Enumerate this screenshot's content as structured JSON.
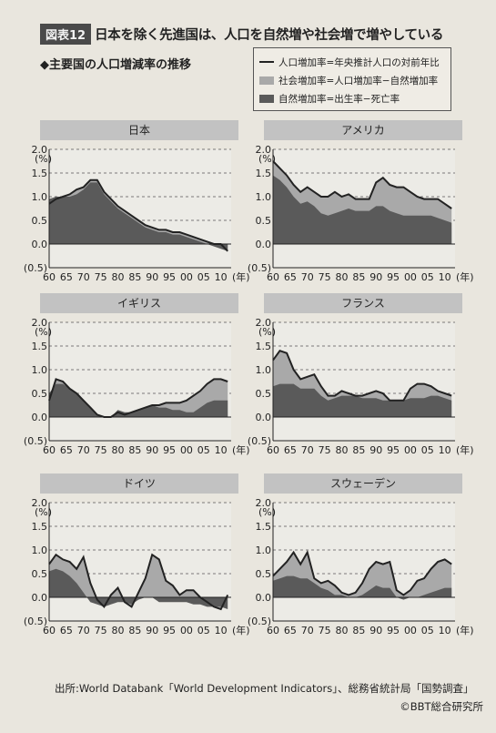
{
  "header": {
    "badge": "図表12",
    "title": "日本を除く先進国は、人口を自然増や社会増で増やしている"
  },
  "subtitle": "◆主要国の人口増減率の推移",
  "legend": [
    {
      "label": "人口増加率=年央推計人口の対前年比",
      "style": "line"
    },
    {
      "label": "社会増加率=人口増加率−自然増加率",
      "style": "light"
    },
    {
      "label": "自然増加率=出生率−死亡率",
      "style": "dark"
    }
  ],
  "colors": {
    "line": "#222222",
    "light_fill": "#a9a9a9",
    "dark_fill": "#5a5a5a",
    "title_bar": "#c2c2c2",
    "plot_bg": "#ecebe6"
  },
  "axis_common": {
    "yticks": [
      {
        "value": 2.0,
        "label": "2.0"
      },
      {
        "value": 1.5,
        "label": "1.5"
      },
      {
        "value": 1.0,
        "label": "1.0"
      },
      {
        "value": 0.5,
        "label": "0.5"
      },
      {
        "value": 0.0,
        "label": "0.0"
      },
      {
        "value": -0.5,
        "label": "(0.5)"
      }
    ],
    "yunit": "(%)",
    "xticks": [
      1960,
      1965,
      1970,
      1975,
      1980,
      1985,
      1990,
      1995,
      2000,
      2005,
      2010
    ],
    "xtick_labels": [
      "60",
      "65",
      "70",
      "75",
      "80",
      "85",
      "90",
      "95",
      "00",
      "05",
      "10"
    ],
    "xunit": "(年)"
  },
  "chart_data": [
    {
      "type": "area",
      "title": "日本",
      "ylim": [
        -0.5,
        2.0
      ],
      "xlim": [
        1960,
        2013
      ],
      "grid": "dashed",
      "x": [
        1960,
        1962,
        1964,
        1966,
        1968,
        1970,
        1972,
        1974,
        1976,
        1978,
        1980,
        1982,
        1984,
        1986,
        1988,
        1990,
        1992,
        1994,
        1996,
        1998,
        2000,
        2002,
        2004,
        2006,
        2008,
        2010,
        2012
      ],
      "series": [
        {
          "name": "人口増加率",
          "values": [
            0.85,
            0.95,
            1.0,
            1.05,
            1.15,
            1.2,
            1.35,
            1.35,
            1.1,
            0.95,
            0.8,
            0.7,
            0.6,
            0.5,
            0.4,
            0.35,
            0.3,
            0.3,
            0.25,
            0.25,
            0.2,
            0.15,
            0.1,
            0.05,
            0.0,
            0.0,
            -0.15
          ]
        },
        {
          "name": "自然増加率",
          "values": [
            0.95,
            1.0,
            1.0,
            1.0,
            1.05,
            1.15,
            1.3,
            1.3,
            1.05,
            0.9,
            0.75,
            0.65,
            0.55,
            0.45,
            0.35,
            0.3,
            0.25,
            0.25,
            0.2,
            0.2,
            0.15,
            0.1,
            0.05,
            0.0,
            -0.05,
            -0.1,
            -0.15
          ]
        }
      ]
    },
    {
      "type": "area",
      "title": "アメリカ",
      "ylim": [
        -0.5,
        2.0
      ],
      "xlim": [
        1960,
        2013
      ],
      "grid": "dashed",
      "x": [
        1960,
        1962,
        1964,
        1966,
        1968,
        1970,
        1972,
        1974,
        1976,
        1978,
        1980,
        1982,
        1984,
        1986,
        1988,
        1990,
        1992,
        1994,
        1996,
        1998,
        2000,
        2002,
        2004,
        2006,
        2008,
        2010,
        2012
      ],
      "series": [
        {
          "name": "人口増加率",
          "values": [
            1.75,
            1.6,
            1.45,
            1.25,
            1.1,
            1.2,
            1.1,
            1.0,
            1.0,
            1.1,
            1.0,
            1.05,
            0.95,
            0.95,
            0.95,
            1.3,
            1.4,
            1.25,
            1.2,
            1.2,
            1.1,
            1.0,
            0.95,
            0.95,
            0.95,
            0.85,
            0.75
          ]
        },
        {
          "name": "自然増加率",
          "values": [
            1.45,
            1.35,
            1.2,
            1.0,
            0.85,
            0.9,
            0.8,
            0.65,
            0.6,
            0.65,
            0.7,
            0.75,
            0.7,
            0.7,
            0.7,
            0.8,
            0.8,
            0.7,
            0.65,
            0.6,
            0.6,
            0.6,
            0.6,
            0.6,
            0.55,
            0.5,
            0.45
          ]
        }
      ]
    },
    {
      "type": "area",
      "title": "イギリス",
      "ylim": [
        -0.5,
        2.0
      ],
      "xlim": [
        1960,
        2013
      ],
      "grid": "dashed",
      "x": [
        1960,
        1962,
        1964,
        1966,
        1968,
        1970,
        1972,
        1974,
        1976,
        1978,
        1980,
        1982,
        1984,
        1986,
        1988,
        1990,
        1992,
        1994,
        1996,
        1998,
        2000,
        2002,
        2004,
        2006,
        2008,
        2010,
        2012
      ],
      "series": [
        {
          "name": "人口増加率",
          "values": [
            0.35,
            0.8,
            0.75,
            0.6,
            0.5,
            0.35,
            0.2,
            0.05,
            0.0,
            0.0,
            0.1,
            0.05,
            0.1,
            0.15,
            0.2,
            0.25,
            0.25,
            0.3,
            0.3,
            0.3,
            0.35,
            0.45,
            0.55,
            0.7,
            0.8,
            0.8,
            0.75
          ]
        },
        {
          "name": "自然増加率",
          "values": [
            0.5,
            0.7,
            0.7,
            0.6,
            0.5,
            0.35,
            0.2,
            0.05,
            0.0,
            0.0,
            0.15,
            0.1,
            0.1,
            0.15,
            0.2,
            0.25,
            0.2,
            0.2,
            0.15,
            0.15,
            0.1,
            0.1,
            0.2,
            0.3,
            0.35,
            0.35,
            0.35
          ]
        }
      ]
    },
    {
      "type": "area",
      "title": "フランス",
      "ylim": [
        -0.5,
        2.0
      ],
      "xlim": [
        1960,
        2013
      ],
      "grid": "dashed",
      "x": [
        1960,
        1962,
        1964,
        1966,
        1968,
        1970,
        1972,
        1974,
        1976,
        1978,
        1980,
        1982,
        1984,
        1986,
        1988,
        1990,
        1992,
        1994,
        1996,
        1998,
        2000,
        2002,
        2004,
        2006,
        2008,
        2010,
        2012
      ],
      "series": [
        {
          "name": "人口増加率",
          "values": [
            1.2,
            1.4,
            1.35,
            1.0,
            0.8,
            0.85,
            0.9,
            0.65,
            0.45,
            0.45,
            0.55,
            0.5,
            0.45,
            0.45,
            0.5,
            0.55,
            0.5,
            0.35,
            0.35,
            0.35,
            0.6,
            0.7,
            0.7,
            0.65,
            0.55,
            0.5,
            0.45
          ]
        },
        {
          "name": "自然増加率",
          "values": [
            0.65,
            0.7,
            0.7,
            0.7,
            0.6,
            0.6,
            0.6,
            0.45,
            0.35,
            0.4,
            0.45,
            0.45,
            0.45,
            0.4,
            0.4,
            0.4,
            0.35,
            0.35,
            0.35,
            0.35,
            0.4,
            0.4,
            0.4,
            0.45,
            0.45,
            0.4,
            0.35
          ]
        }
      ]
    },
    {
      "type": "area",
      "title": "ドイツ",
      "ylim": [
        -0.5,
        2.0
      ],
      "xlim": [
        1960,
        2013
      ],
      "grid": "dashed",
      "x": [
        1960,
        1962,
        1964,
        1966,
        1968,
        1970,
        1972,
        1974,
        1976,
        1978,
        1980,
        1982,
        1984,
        1986,
        1988,
        1990,
        1992,
        1994,
        1996,
        1998,
        2000,
        2002,
        2004,
        2006,
        2008,
        2010,
        2012
      ],
      "series": [
        {
          "name": "人口増加率",
          "values": [
            0.7,
            0.9,
            0.8,
            0.75,
            0.6,
            0.85,
            0.3,
            -0.05,
            -0.2,
            0.05,
            0.2,
            -0.1,
            -0.2,
            0.1,
            0.4,
            0.9,
            0.8,
            0.35,
            0.25,
            0.05,
            0.15,
            0.15,
            0.0,
            -0.1,
            -0.2,
            -0.25,
            0.05
          ]
        },
        {
          "name": "自然増加率",
          "values": [
            0.55,
            0.6,
            0.55,
            0.45,
            0.3,
            0.1,
            -0.1,
            -0.15,
            -0.2,
            -0.15,
            -0.1,
            -0.1,
            -0.15,
            -0.05,
            0.0,
            0.0,
            -0.1,
            -0.1,
            -0.1,
            -0.1,
            -0.1,
            -0.15,
            -0.15,
            -0.2,
            -0.2,
            -0.2,
            -0.25
          ]
        }
      ]
    },
    {
      "type": "area",
      "title": "スウェーデン",
      "ylim": [
        -0.5,
        2.0
      ],
      "xlim": [
        1960,
        2013
      ],
      "grid": "dashed",
      "x": [
        1960,
        1962,
        1964,
        1966,
        1968,
        1970,
        1972,
        1974,
        1976,
        1978,
        1980,
        1982,
        1984,
        1986,
        1988,
        1990,
        1992,
        1994,
        1996,
        1998,
        2000,
        2002,
        2004,
        2006,
        2008,
        2010,
        2012
      ],
      "series": [
        {
          "name": "人口増加率",
          "values": [
            0.45,
            0.6,
            0.75,
            0.95,
            0.7,
            0.95,
            0.4,
            0.3,
            0.35,
            0.25,
            0.1,
            0.05,
            0.1,
            0.3,
            0.6,
            0.75,
            0.7,
            0.75,
            0.15,
            0.05,
            0.15,
            0.35,
            0.4,
            0.6,
            0.75,
            0.8,
            0.7
          ]
        },
        {
          "name": "自然増加率",
          "values": [
            0.35,
            0.4,
            0.45,
            0.45,
            0.4,
            0.4,
            0.3,
            0.2,
            0.15,
            0.05,
            0.05,
            0.0,
            0.0,
            0.05,
            0.15,
            0.25,
            0.2,
            0.2,
            0.0,
            -0.05,
            0.0,
            0.0,
            0.05,
            0.1,
            0.15,
            0.2,
            0.2
          ]
        }
      ]
    }
  ],
  "source": "出所:World Databank「World Development Indicators」、総務省統計局「国勢調査」",
  "copyright": "©BBT総合研究所"
}
